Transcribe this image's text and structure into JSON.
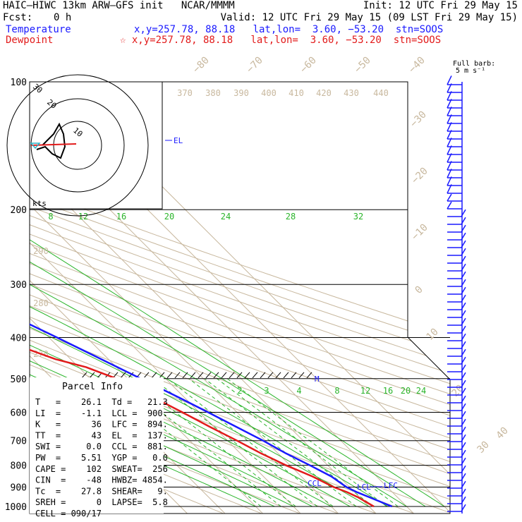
{
  "header": {
    "left1": "HAIC–HIWC 13km ARW–GFS init   NCAR/MMMM",
    "right1": "Init: 12 UTC Fri 29 May 15",
    "fcst_label": "Fcst:",
    "fcst_value": "0 h",
    "valid": "Valid: 12 UTC Fri 29 May 15 (09 LST Fri 29 May 15)",
    "temp_label": "Temperature",
    "temp_info": "x,y=257.78, 88.18   lat,lon=  3.60, −53.20  stn=SOOS",
    "dew_label": "Dewpoint",
    "dew_info": "☆ x,y=257.78, 88.18   lat,lon=  3.60, −53.20  stn=SOOS",
    "barb_note_1": "Full barb:",
    "barb_note_2": "5 m s⁻¹"
  },
  "chart_data": {
    "type": "line",
    "title": "Skew-T log-P sounding",
    "ylabel": "Pressure (hPa)",
    "pressure_levels": [
      100,
      200,
      300,
      400,
      500,
      600,
      700,
      800,
      900,
      1000
    ],
    "isotherm_labels": [
      "−80",
      "−70",
      "−60",
      "−50",
      "−40",
      "−30",
      "−20",
      "−10",
      "0",
      "10",
      "20",
      "30",
      "40"
    ],
    "theta_labels": [
      "370",
      "380",
      "390",
      "400",
      "410",
      "420",
      "430",
      "440",
      "290",
      "280",
      "270"
    ],
    "mixing_ratio_upper": [
      "8",
      "12",
      "16",
      "20",
      "24",
      "28",
      "32"
    ],
    "mixing_ratio_lower": [
      "2",
      "3",
      "4",
      "8",
      "12",
      "16",
      "20",
      "24"
    ],
    "series": [
      {
        "name": "Temperature",
        "color": "#1a1aff",
        "points": [
          [
            1000,
            26.1
          ],
          [
            950,
            22.5
          ],
          [
            925,
            20.6
          ],
          [
            900,
            19.2
          ],
          [
            850,
            18.0
          ],
          [
            800,
            15.3
          ],
          [
            750,
            12.1
          ],
          [
            700,
            9.4
          ],
          [
            650,
            6.0
          ],
          [
            600,
            2.3
          ],
          [
            550,
            -1.8
          ],
          [
            500,
            -6.6
          ],
          [
            450,
            -11.9
          ],
          [
            400,
            -17.9
          ],
          [
            350,
            -24.9
          ],
          [
            300,
            -33.0
          ],
          [
            250,
            -43.0
          ],
          [
            200,
            -55.0
          ],
          [
            150,
            -68.0
          ],
          [
            125,
            -76.0
          ],
          [
            100,
            -73.0
          ]
        ]
      },
      {
        "name": "Dewpoint",
        "color": "#e21b1b",
        "points": [
          [
            1000,
            21.3
          ],
          [
            950,
            19.5
          ],
          [
            925,
            18.0
          ],
          [
            900,
            15.8
          ],
          [
            850,
            13.0
          ],
          [
            800,
            9.0
          ],
          [
            750,
            5.5
          ],
          [
            700,
            2.5
          ],
          [
            650,
            -1.0
          ],
          [
            600,
            -4.5
          ],
          [
            550,
            -8.5
          ],
          [
            500,
            -13.0
          ],
          [
            470,
            -18.0
          ],
          [
            450,
            -24.0
          ],
          [
            420,
            -30.0
          ],
          [
            400,
            -32.0
          ],
          [
            350,
            -39.0
          ],
          [
            300,
            -49.0
          ],
          [
            250,
            -58.0
          ],
          [
            200,
            -66.0
          ],
          [
            150,
            -79.0
          ],
          [
            125,
            -85.0
          ],
          [
            100,
            -82.0
          ]
        ]
      }
    ],
    "annotations": [
      {
        "text": "EL",
        "p": 137
      },
      {
        "text": "M",
        "p": 495
      },
      {
        "text": "CCL",
        "p": 881
      },
      {
        "text": "LCL",
        "p": 900
      },
      {
        "text": "LFC",
        "p": 894
      }
    ],
    "hodograph": {
      "rings": [
        "10",
        "20",
        "30"
      ],
      "unit": "kts"
    },
    "parcel_info": {
      "title": "Parcel Info",
      "rows": [
        "T   =    26.1  Td =   21.3",
        "LI  =    -1.1  LCL =  900.",
        "K   =      36  LFC =  894.",
        "TT  =      43  EL  =  137.",
        "SWI =     0.0  CCL =  881.",
        "PW  =    5.51  YGP =   0.0",
        "CAPE =    102  SWEAT=  256",
        "CIN  =    -48  HWBZ= 4854.",
        "Tc  =    27.8  SHEAR=   9.",
        "SREH =      0  LAPSE=  5.8",
        "CELL = 090/17"
      ]
    }
  }
}
